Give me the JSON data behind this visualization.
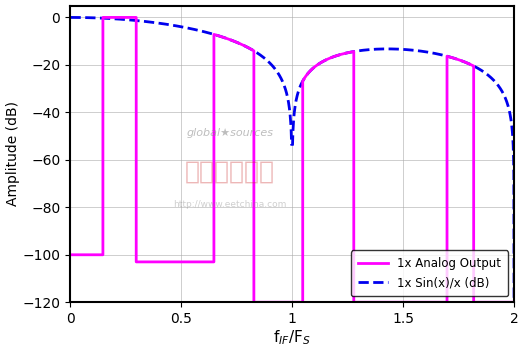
{
  "ylabel": "Amplitude (dB)",
  "xlim": [
    0,
    2
  ],
  "ylim": [
    -120,
    5
  ],
  "yticks": [
    0,
    -20,
    -40,
    -60,
    -80,
    -100,
    -120
  ],
  "xticks": [
    0,
    0.5,
    1.0,
    1.5,
    2.0
  ],
  "analog_color": "#FF00FF",
  "sinc_color": "#0000EE",
  "bg_color": "#FFFFFF",
  "watermark1": "global★sources",
  "watermark2": "电子工程专辑",
  "watermark3": "http://www.eetchina.com",
  "legend_analog": "1x Analog Output",
  "legend_sinc": "1x Sin(x)/x (dB)"
}
